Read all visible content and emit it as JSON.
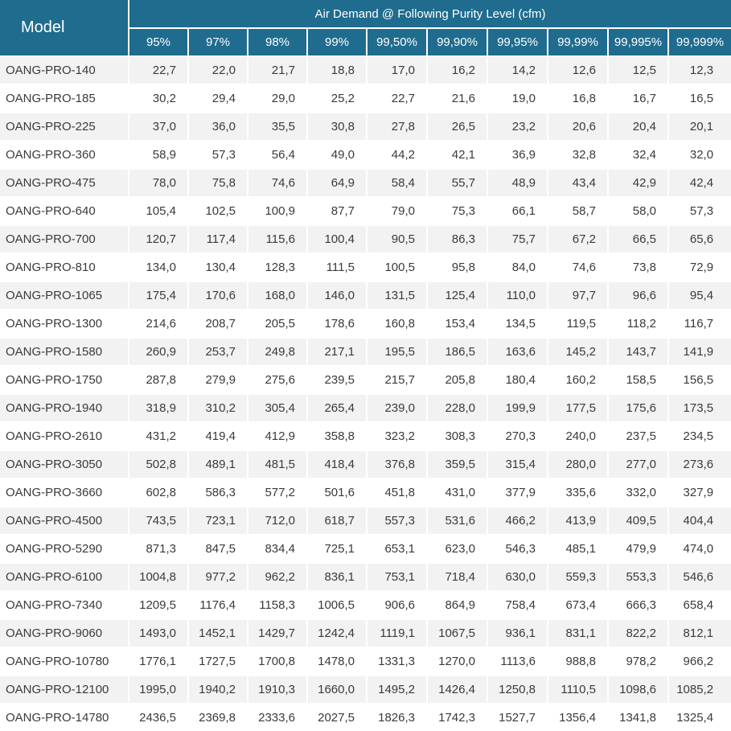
{
  "header": {
    "model_label": "Model",
    "group_label": "Air Demand @ Following Purity Level (cfm)",
    "levels": [
      "95%",
      "97%",
      "98%",
      "99%",
      "99,50%",
      "99,90%",
      "99,95%",
      "99,99%",
      "99,995%",
      "99,999%"
    ]
  },
  "rows": [
    {
      "model": "OANG-PRO-140",
      "values": [
        "22,7",
        "22,0",
        "21,7",
        "18,8",
        "17,0",
        "16,2",
        "14,2",
        "12,6",
        "12,5",
        "12,3"
      ]
    },
    {
      "model": "OANG-PRO-185",
      "values": [
        "30,2",
        "29,4",
        "29,0",
        "25,2",
        "22,7",
        "21,6",
        "19,0",
        "16,8",
        "16,7",
        "16,5"
      ]
    },
    {
      "model": "OANG-PRO-225",
      "values": [
        "37,0",
        "36,0",
        "35,5",
        "30,8",
        "27,8",
        "26,5",
        "23,2",
        "20,6",
        "20,4",
        "20,1"
      ]
    },
    {
      "model": "OANG-PRO-360",
      "values": [
        "58,9",
        "57,3",
        "56,4",
        "49,0",
        "44,2",
        "42,1",
        "36,9",
        "32,8",
        "32,4",
        "32,0"
      ]
    },
    {
      "model": "OANG-PRO-475",
      "values": [
        "78,0",
        "75,8",
        "74,6",
        "64,9",
        "58,4",
        "55,7",
        "48,9",
        "43,4",
        "42,9",
        "42,4"
      ]
    },
    {
      "model": "OANG-PRO-640",
      "values": [
        "105,4",
        "102,5",
        "100,9",
        "87,7",
        "79,0",
        "75,3",
        "66,1",
        "58,7",
        "58,0",
        "57,3"
      ]
    },
    {
      "model": "OANG-PRO-700",
      "values": [
        "120,7",
        "117,4",
        "115,6",
        "100,4",
        "90,5",
        "86,3",
        "75,7",
        "67,2",
        "66,5",
        "65,6"
      ]
    },
    {
      "model": "OANG-PRO-810",
      "values": [
        "134,0",
        "130,4",
        "128,3",
        "111,5",
        "100,5",
        "95,8",
        "84,0",
        "74,6",
        "73,8",
        "72,9"
      ]
    },
    {
      "model": "OANG-PRO-1065",
      "values": [
        "175,4",
        "170,6",
        "168,0",
        "146,0",
        "131,5",
        "125,4",
        "110,0",
        "97,7",
        "96,6",
        "95,4"
      ]
    },
    {
      "model": "OANG-PRO-1300",
      "values": [
        "214,6",
        "208,7",
        "205,5",
        "178,6",
        "160,8",
        "153,4",
        "134,5",
        "119,5",
        "118,2",
        "116,7"
      ]
    },
    {
      "model": "OANG-PRO-1580",
      "values": [
        "260,9",
        "253,7",
        "249,8",
        "217,1",
        "195,5",
        "186,5",
        "163,6",
        "145,2",
        "143,7",
        "141,9"
      ]
    },
    {
      "model": "OANG-PRO-1750",
      "values": [
        "287,8",
        "279,9",
        "275,6",
        "239,5",
        "215,7",
        "205,8",
        "180,4",
        "160,2",
        "158,5",
        "156,5"
      ]
    },
    {
      "model": "OANG-PRO-1940",
      "values": [
        "318,9",
        "310,2",
        "305,4",
        "265,4",
        "239,0",
        "228,0",
        "199,9",
        "177,5",
        "175,6",
        "173,5"
      ]
    },
    {
      "model": "OANG-PRO-2610",
      "values": [
        "431,2",
        "419,4",
        "412,9",
        "358,8",
        "323,2",
        "308,3",
        "270,3",
        "240,0",
        "237,5",
        "234,5"
      ]
    },
    {
      "model": "OANG-PRO-3050",
      "values": [
        "502,8",
        "489,1",
        "481,5",
        "418,4",
        "376,8",
        "359,5",
        "315,4",
        "280,0",
        "277,0",
        "273,6"
      ]
    },
    {
      "model": "OANG-PRO-3660",
      "values": [
        "602,8",
        "586,3",
        "577,2",
        "501,6",
        "451,8",
        "431,0",
        "377,9",
        "335,6",
        "332,0",
        "327,9"
      ]
    },
    {
      "model": "OANG-PRO-4500",
      "values": [
        "743,5",
        "723,1",
        "712,0",
        "618,7",
        "557,3",
        "531,6",
        "466,2",
        "413,9",
        "409,5",
        "404,4"
      ]
    },
    {
      "model": "OANG-PRO-5290",
      "values": [
        "871,3",
        "847,5",
        "834,4",
        "725,1",
        "653,1",
        "623,0",
        "546,3",
        "485,1",
        "479,9",
        "474,0"
      ]
    },
    {
      "model": "OANG-PRO-6100",
      "values": [
        "1004,8",
        "977,2",
        "962,2",
        "836,1",
        "753,1",
        "718,4",
        "630,0",
        "559,3",
        "553,3",
        "546,6"
      ]
    },
    {
      "model": "OANG-PRO-7340",
      "values": [
        "1209,5",
        "1176,4",
        "1158,3",
        "1006,5",
        "906,6",
        "864,9",
        "758,4",
        "673,4",
        "666,3",
        "658,4"
      ]
    },
    {
      "model": "OANG-PRO-9060",
      "values": [
        "1493,0",
        "1452,1",
        "1429,7",
        "1242,4",
        "1119,1",
        "1067,5",
        "936,1",
        "831,1",
        "822,2",
        "812,1"
      ]
    },
    {
      "model": "OANG-PRO-10780",
      "values": [
        "1776,1",
        "1727,5",
        "1700,8",
        "1478,0",
        "1331,3",
        "1270,0",
        "1113,6",
        "988,8",
        "978,2",
        "966,2"
      ]
    },
    {
      "model": "OANG-PRO-12100",
      "values": [
        "1995,0",
        "1940,2",
        "1910,3",
        "1660,0",
        "1495,2",
        "1426,4",
        "1250,8",
        "1110,5",
        "1098,6",
        "1085,2"
      ]
    },
    {
      "model": "OANG-PRO-14780",
      "values": [
        "2436,5",
        "2369,8",
        "2333,6",
        "2027,5",
        "1826,3",
        "1742,3",
        "1527,7",
        "1356,4",
        "1341,8",
        "1325,4"
      ]
    }
  ]
}
